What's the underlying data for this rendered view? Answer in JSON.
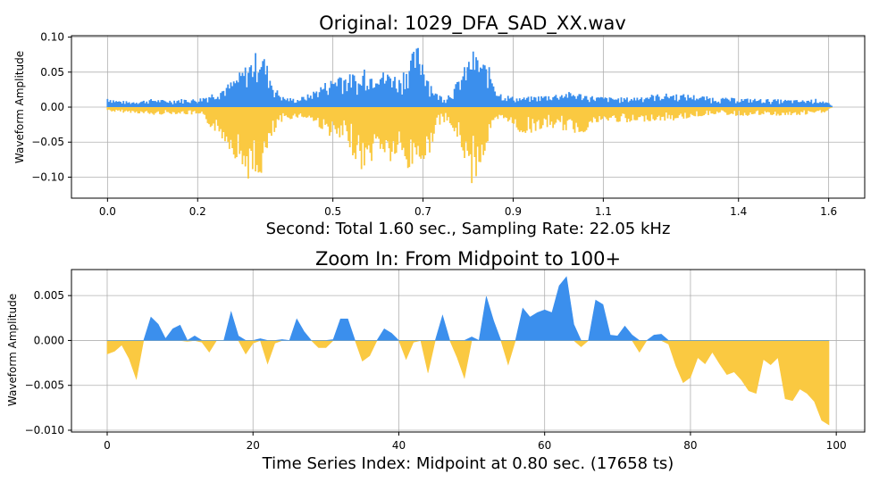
{
  "colors": {
    "positive": "#3b8fed",
    "negative": "#fac941",
    "grid": "#b0b0b0",
    "axis": "#000000"
  },
  "chart_data": [
    {
      "type": "area",
      "title": "Original: 1029_DFA_SAD_XX.wav",
      "xlabel": "Second: Total 1.60 sec., Sampling Rate: 22.05 kHz",
      "ylabel": "Waveform Amplitude",
      "xlim": [
        -0.08,
        1.68
      ],
      "ylim": [
        -0.13,
        0.102
      ],
      "grid": true,
      "xticks": [
        0.0,
        0.2,
        0.5,
        0.7,
        0.9,
        1.1,
        1.4,
        1.6
      ],
      "xtick_labels": [
        "0.0",
        "0.2",
        "0.5",
        "0.7",
        "0.9",
        "1.1",
        "1.4",
        "1.6"
      ],
      "yticks": [
        0.1,
        0.05,
        0.0,
        -0.05,
        -0.1
      ],
      "ytick_labels": [
        "0.10",
        "0.05",
        "0.00",
        "−0.05",
        "−0.10"
      ],
      "envelope": {
        "x": [
          0.0,
          0.02,
          0.05,
          0.08,
          0.1,
          0.13,
          0.16,
          0.2,
          0.23,
          0.26,
          0.28,
          0.3,
          0.32,
          0.33,
          0.34,
          0.355,
          0.37,
          0.39,
          0.42,
          0.45,
          0.48,
          0.5,
          0.52,
          0.53,
          0.545,
          0.56,
          0.57,
          0.585,
          0.6,
          0.615,
          0.63,
          0.645,
          0.66,
          0.67,
          0.68,
          0.69,
          0.7,
          0.705,
          0.715,
          0.73,
          0.75,
          0.77,
          0.79,
          0.8,
          0.81,
          0.82,
          0.835,
          0.845,
          0.855,
          0.865,
          0.875,
          0.885,
          0.9,
          0.92,
          0.95,
          0.98,
          1.02,
          1.05,
          1.08,
          1.12,
          1.16,
          1.2,
          1.25,
          1.3,
          1.35,
          1.4,
          1.45,
          1.5,
          1.54,
          1.57,
          1.59,
          1.6,
          1.61
        ],
        "pos": [
          0.015,
          0.01,
          0.008,
          0.01,
          0.012,
          0.01,
          0.012,
          0.012,
          0.02,
          0.03,
          0.04,
          0.055,
          0.07,
          0.08,
          0.088,
          0.06,
          0.03,
          0.015,
          0.012,
          0.02,
          0.035,
          0.042,
          0.055,
          0.045,
          0.05,
          0.038,
          0.062,
          0.05,
          0.065,
          0.048,
          0.055,
          0.04,
          0.06,
          0.07,
          0.082,
          0.09,
          0.072,
          0.06,
          0.04,
          0.02,
          0.015,
          0.03,
          0.055,
          0.068,
          0.082,
          0.075,
          0.065,
          0.06,
          0.045,
          0.025,
          0.02,
          0.018,
          0.015,
          0.014,
          0.016,
          0.018,
          0.022,
          0.02,
          0.016,
          0.014,
          0.014,
          0.018,
          0.02,
          0.018,
          0.014,
          0.013,
          0.012,
          0.011,
          0.01,
          0.012,
          0.01,
          0.006,
          0.0
        ],
        "neg": [
          -0.005,
          -0.008,
          -0.008,
          -0.01,
          -0.012,
          -0.01,
          -0.01,
          -0.012,
          -0.03,
          -0.05,
          -0.07,
          -0.09,
          -0.11,
          -0.118,
          -0.1,
          -0.07,
          -0.04,
          -0.02,
          -0.015,
          -0.018,
          -0.035,
          -0.045,
          -0.052,
          -0.05,
          -0.07,
          -0.088,
          -0.095,
          -0.08,
          -0.06,
          -0.072,
          -0.083,
          -0.07,
          -0.09,
          -0.098,
          -0.082,
          -0.075,
          -0.085,
          -0.092,
          -0.065,
          -0.03,
          -0.02,
          -0.04,
          -0.07,
          -0.098,
          -0.115,
          -0.095,
          -0.075,
          -0.05,
          -0.03,
          -0.022,
          -0.02,
          -0.018,
          -0.03,
          -0.04,
          -0.035,
          -0.03,
          -0.035,
          -0.04,
          -0.025,
          -0.02,
          -0.025,
          -0.02,
          -0.02,
          -0.015,
          -0.01,
          -0.013,
          -0.012,
          -0.013,
          -0.012,
          -0.01,
          -0.008,
          -0.004,
          0.0
        ]
      }
    },
    {
      "type": "area",
      "title": "Zoom In: From Midpoint to 100+",
      "xlabel": "Time Series Index: Midpoint at 0.80 sec. (17658 ts)",
      "ylabel": "Waveform Amplitude",
      "xlim": [
        -4.9,
        103.9
      ],
      "ylim": [
        -0.0102,
        0.0079
      ],
      "grid": true,
      "xticks": [
        0,
        20,
        40,
        60,
        80,
        100
      ],
      "xtick_labels": [
        "0",
        "20",
        "40",
        "60",
        "80",
        "100"
      ],
      "yticks": [
        0.005,
        0.0,
        -0.005,
        -0.01
      ],
      "ytick_labels": [
        "0.005",
        "0.000",
        "−0.005",
        "−0.010"
      ],
      "x": [
        0,
        1,
        2,
        3,
        4,
        5,
        6,
        7,
        8,
        9,
        10,
        11,
        12,
        13,
        14,
        15,
        16,
        17,
        18,
        19,
        20,
        21,
        22,
        23,
        24,
        25,
        26,
        27,
        28,
        29,
        30,
        31,
        32,
        33,
        34,
        35,
        36,
        37,
        38,
        39,
        40,
        41,
        42,
        43,
        44,
        45,
        46,
        47,
        48,
        49,
        50,
        51,
        52,
        53,
        54,
        55,
        56,
        57,
        58,
        59,
        60,
        61,
        62,
        63,
        64,
        65,
        66,
        67,
        68,
        69,
        70,
        71,
        72,
        73,
        74,
        75,
        76,
        77,
        78,
        79,
        80,
        81,
        82,
        83,
        84,
        85,
        86,
        87,
        88,
        89,
        90,
        91,
        92,
        93,
        94,
        95,
        96,
        97,
        98,
        99
      ],
      "y": [
        -0.0015,
        -0.0012,
        -0.0005,
        -0.002,
        -0.0043,
        0.0,
        0.0026,
        0.0018,
        0.0002,
        0.0013,
        0.0017,
        -0.0001,
        0.0005,
        -0.0002,
        -0.0013,
        0.0,
        0.0,
        0.0032,
        0.0005,
        -0.0015,
        -0.0003,
        0.0002,
        -0.0026,
        -0.0003,
        0.0001,
        0.0,
        0.0024,
        0.001,
        0.0,
        -0.0008,
        -0.0008,
        0.0001,
        0.0024,
        0.0024,
        0.0,
        -0.0023,
        -0.0017,
        0.0,
        0.0013,
        0.0008,
        0.0,
        -0.0021,
        -0.0002,
        0.0,
        -0.0036,
        0.0,
        0.0028,
        0.0,
        -0.0019,
        -0.0042,
        0.0004,
        0.0,
        0.0049,
        0.0022,
        0.0,
        -0.0027,
        0.0,
        0.0036,
        0.0026,
        0.0031,
        0.0034,
        0.0031,
        0.0061,
        0.0071,
        0.0018,
        -0.0007,
        0.0,
        0.0045,
        0.004,
        0.0006,
        0.0005,
        0.0016,
        0.0006,
        -0.0013,
        0.0,
        0.0006,
        0.0007,
        -0.0004,
        -0.0028,
        -0.0047,
        -0.0041,
        -0.0019,
        -0.0026,
        -0.0013,
        -0.0026,
        -0.0038,
        -0.0035,
        -0.0044,
        -0.0056,
        -0.0059,
        -0.0021,
        -0.0027,
        -0.0019,
        -0.0065,
        -0.0067,
        -0.0054,
        -0.0059,
        -0.0068,
        -0.0089,
        -0.0094
      ]
    }
  ]
}
